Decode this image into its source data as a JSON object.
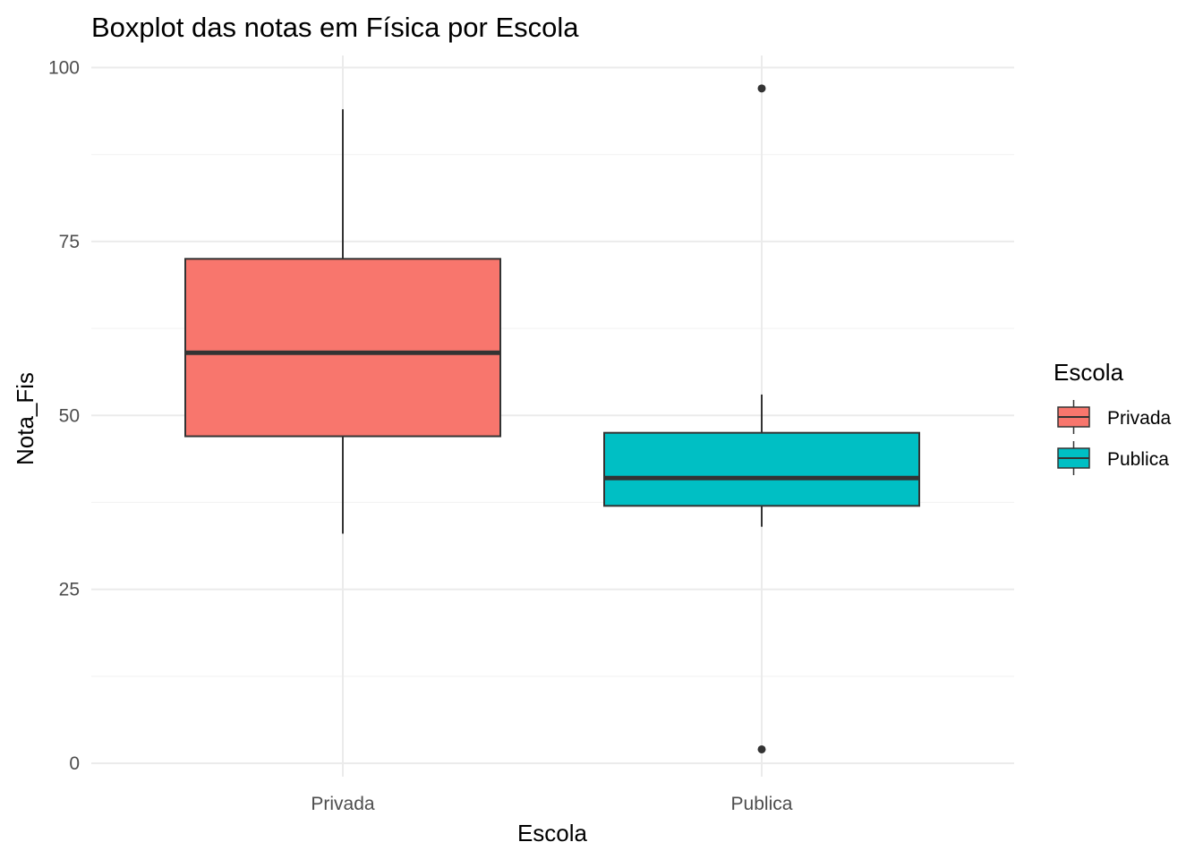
{
  "chart_data": {
    "type": "boxplot",
    "title": "Boxplot das notas em Física por Escola",
    "xlabel": "Escola",
    "ylabel": "Nota_Fis",
    "ylim": [
      -3,
      101
    ],
    "y_ticks": [
      0,
      25,
      50,
      75,
      100
    ],
    "y_tick_labels": [
      "0",
      "25",
      "50",
      "75",
      "100"
    ],
    "grid": true,
    "categories": [
      "Privada",
      "Publica"
    ],
    "boxes": [
      {
        "name": "Privada",
        "whisker_low": 33,
        "q1": 47,
        "median": 59,
        "q3": 72.5,
        "whisker_high": 94,
        "outliers": [],
        "color": "#F8766D"
      },
      {
        "name": "Publica",
        "whisker_low": 34,
        "q1": 37,
        "median": 41,
        "q3": 47.5,
        "whisker_high": 53,
        "outliers": [
          97,
          2
        ],
        "color": "#00BFC4"
      }
    ],
    "legend": {
      "title": "Escola",
      "placement": "right",
      "entries": [
        "Privada",
        "Publica"
      ]
    }
  }
}
